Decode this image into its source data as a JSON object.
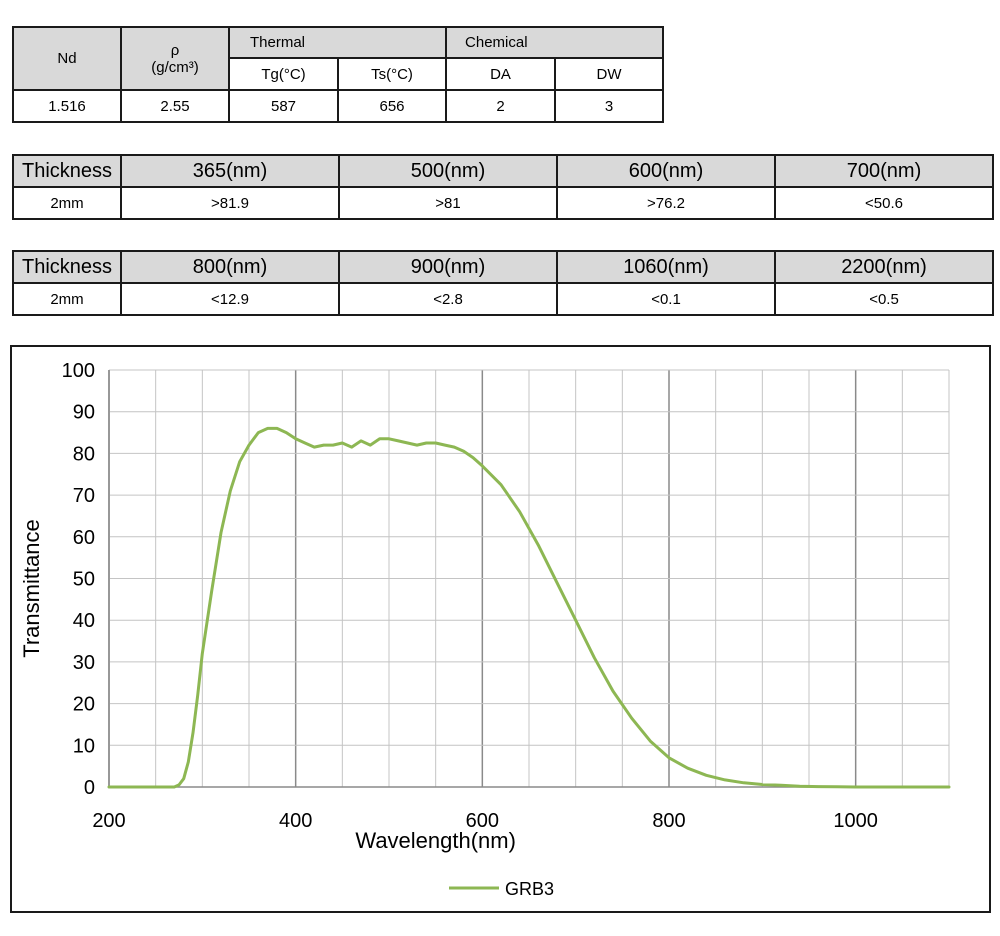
{
  "properties_table": {
    "headers": {
      "nd": "Nd",
      "rho": "ρ",
      "rho_unit": "(g/cm³)",
      "thermal": "Thermal",
      "chemical": "Chemical",
      "tg": "Tg(°C)",
      "ts": "Ts(°C)",
      "da": "DA",
      "dw": "DW"
    },
    "values": {
      "nd": "1.516",
      "rho": "2.55",
      "tg": "587",
      "ts": "656",
      "da": "2",
      "dw": "3"
    }
  },
  "transmittance_table_1": {
    "thickness_label": "Thickness",
    "columns": [
      "365(nm)",
      "500(nm)",
      "600(nm)",
      "700(nm)"
    ],
    "row_label": "2mm",
    "values": [
      ">81.9",
      ">81",
      ">76.2",
      "<50.6"
    ]
  },
  "transmittance_table_2": {
    "thickness_label": "Thickness",
    "columns": [
      "800(nm)",
      "900(nm)",
      "1060(nm)",
      "2200(nm)"
    ],
    "row_label": "2mm",
    "values": [
      "<12.9",
      "<2.8",
      "<0.1",
      "<0.5"
    ]
  },
  "chart_data": {
    "type": "line",
    "title": "",
    "xlabel": "Wavelength(nm)",
    "ylabel": "Transmittance",
    "xlim": [
      200,
      1100
    ],
    "ylim": [
      0,
      100
    ],
    "x_ticks": [
      200,
      400,
      600,
      800,
      1000
    ],
    "y_ticks": [
      0,
      10,
      20,
      30,
      40,
      50,
      60,
      70,
      80,
      90,
      100
    ],
    "grid": true,
    "legend": "bottom-center",
    "series": [
      {
        "name": "GRB3",
        "color": "#8db753",
        "x": [
          200,
          270,
          275,
          280,
          285,
          290,
          295,
          300,
          310,
          320,
          330,
          340,
          350,
          360,
          370,
          380,
          390,
          400,
          410,
          420,
          430,
          440,
          450,
          460,
          470,
          480,
          490,
          500,
          510,
          520,
          530,
          540,
          550,
          560,
          570,
          580,
          590,
          600,
          620,
          640,
          660,
          680,
          700,
          720,
          740,
          760,
          780,
          800,
          820,
          840,
          860,
          880,
          900,
          920,
          940,
          960,
          980,
          1000,
          1050,
          1100
        ],
        "y": [
          0,
          0,
          0.5,
          2,
          6,
          13,
          22,
          32,
          47,
          61,
          71,
          78,
          82,
          85,
          86,
          86,
          85,
          83.5,
          82.5,
          81.5,
          82,
          82,
          82.5,
          81.5,
          83,
          82,
          83.5,
          83.5,
          83,
          82.5,
          82,
          82.5,
          82.5,
          82,
          81.5,
          80.5,
          79,
          77,
          72.5,
          66,
          58,
          49,
          40,
          31,
          23,
          16.5,
          11,
          7,
          4.5,
          2.8,
          1.7,
          1,
          0.6,
          0.4,
          0.2,
          0.1,
          0.05,
          0,
          0,
          0
        ]
      }
    ]
  }
}
